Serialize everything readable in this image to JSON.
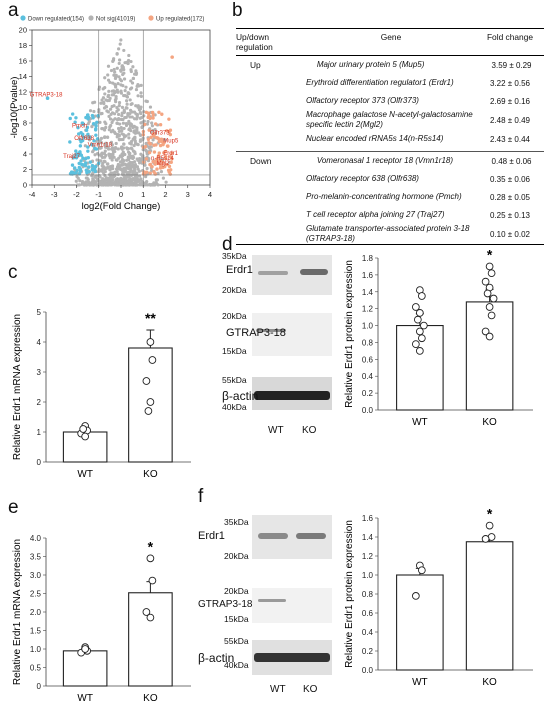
{
  "panels": {
    "a": "a",
    "b": "b",
    "c": "c",
    "d": "d",
    "e": "e",
    "f": "f"
  },
  "volcano": {
    "legend": [
      {
        "label": "Down regulated(154)",
        "color": "#5bc0de"
      },
      {
        "label": "Not sig(41019)",
        "color": "#b3b3b3"
      },
      {
        "label": "Up regulated(172)",
        "color": "#f4a582"
      }
    ],
    "xlabel": "log2(Fold Change)",
    "ylabel": "-log10(Pvalue)",
    "xticks": [
      "-4",
      "-3",
      "-2",
      "-1",
      "0",
      "1",
      "2",
      "3",
      "4"
    ],
    "yticks": [
      "0",
      "2",
      "4",
      "6",
      "8",
      "10",
      "12",
      "14",
      "16",
      "18",
      "20"
    ],
    "genes_left": [
      "GTRAP3-18",
      "Pmch",
      "Olfr638",
      "Vmn1r18",
      "Traj27"
    ],
    "genes_right": [
      "Olfr373",
      "Mup5",
      "Erdr1",
      "n-R5s14",
      "Mgl2"
    ]
  },
  "table": {
    "headers": [
      "Up/down regulation",
      "Gene",
      "Fold change"
    ],
    "up_label": "Up",
    "down_label": "Down",
    "up_rows": [
      {
        "gene": "Major urinary protein 5 (Mup5)",
        "fc": "3.59 ± 0.29"
      },
      {
        "gene": "Erythroid differentiation regulator1 (Erdr1)",
        "fc": "3.22 ± 0.56"
      },
      {
        "gene": "Olfactory receptor 373 (Olfr373)",
        "fc": "2.69 ± 0.16"
      },
      {
        "gene": "Macrophage galactose N-acetyl-galactosamine specific lectin 2(Mgl2)",
        "fc": "2.48 ± 0.49"
      },
      {
        "gene": "Nuclear encoded rRNA5s 14(n-R5s14)",
        "fc": "2.43 ± 0.44"
      }
    ],
    "down_rows": [
      {
        "gene": "Vomeronasal 1 receptor 18 (Vmn1r18)",
        "fc": "0.48 ± 0.06"
      },
      {
        "gene": "Olfactory receptor 638 (Olfr638)",
        "fc": "0.35 ± 0.06"
      },
      {
        "gene": "Pro-melanin-concentrating hormone (Pmch)",
        "fc": "0.28 ± 0.05"
      },
      {
        "gene": "T cell receptor alpha joining 27 (Traj27)",
        "fc": "0.25 ± 0.13"
      },
      {
        "gene": "Glutamate transporter-associated protein 3-18 (GTRAP3-18)",
        "fc": "0.10 ± 0.02"
      }
    ]
  },
  "blots": {
    "erdr1": "Erdr1",
    "gtrap": "GTRAP3-18",
    "actin": "β-actin",
    "wt": "WT",
    "ko": "KO",
    "d_kda": [
      "35kDa",
      "20kDa",
      "20kDa",
      "15kDa",
      "55kDa",
      "40kDa"
    ],
    "f_kda": [
      "35kDa",
      "20kDa",
      "20kDa",
      "15kDa",
      "55kDa",
      "40kDa"
    ]
  },
  "chart_data": [
    {
      "panel": "c",
      "type": "bar",
      "categories": [
        "WT",
        "KO"
      ],
      "values": [
        1.0,
        3.8
      ],
      "errors": [
        0.08,
        0.6
      ],
      "points": [
        [
          1.2,
          1.05,
          0.95,
          0.85,
          1.1
        ],
        [
          4.0,
          3.4,
          2.7,
          2.0,
          1.7
        ]
      ],
      "ylabel": "Relative Erdr1 mRNA expression",
      "ylim": [
        0,
        5
      ],
      "yticks": [
        "0",
        "1",
        "2",
        "3",
        "4",
        "5"
      ],
      "significance": "**"
    },
    {
      "panel": "d",
      "type": "bar",
      "categories": [
        "WT",
        "KO"
      ],
      "values": [
        1.0,
        1.28
      ],
      "errors": [
        0.14,
        0.15
      ],
      "points": [
        [
          1.42,
          1.35,
          1.22,
          1.15,
          1.07,
          1.0,
          0.93,
          0.85,
          0.78,
          0.7
        ],
        [
          1.7,
          1.62,
          1.52,
          1.45,
          1.38,
          1.32,
          1.22,
          1.12,
          0.93,
          0.87
        ]
      ],
      "ylabel": "Relative Erdr1 protein expression",
      "ylim": [
        0,
        1.8
      ],
      "yticks": [
        "0.0",
        "0.2",
        "0.4",
        "0.6",
        "0.8",
        "1.0",
        "1.2",
        "1.4",
        "1.6",
        "1.8"
      ],
      "significance": "*"
    },
    {
      "panel": "e",
      "type": "bar",
      "categories": [
        "WT",
        "KO"
      ],
      "values": [
        0.95,
        2.52
      ],
      "errors": [
        0.06,
        0.3
      ],
      "points": [
        [
          1.05,
          0.95,
          0.9,
          1.0
        ],
        [
          3.45,
          2.85,
          2.0,
          1.85
        ]
      ],
      "ylabel": "Relative Erdr1 mRNA expression",
      "ylim": [
        0,
        4.0
      ],
      "yticks": [
        "0",
        "0.5",
        "1.0",
        "1.5",
        "2.0",
        "2.5",
        "3.0",
        "3.5",
        "4.0"
      ],
      "significance": "*"
    },
    {
      "panel": "f",
      "type": "bar",
      "categories": [
        "WT",
        "KO"
      ],
      "values": [
        1.0,
        1.35
      ],
      "errors": [
        0.07,
        0.04
      ],
      "points": [
        [
          1.1,
          1.05,
          0.78
        ],
        [
          1.52,
          1.4,
          1.38
        ]
      ],
      "ylabel": "Relative Erdr1 protein expression",
      "ylim": [
        0,
        1.6
      ],
      "yticks": [
        "0.0",
        "0.2",
        "0.4",
        "0.6",
        "0.8",
        "1.0",
        "1.2",
        "1.4",
        "1.6"
      ],
      "significance": "*"
    }
  ]
}
